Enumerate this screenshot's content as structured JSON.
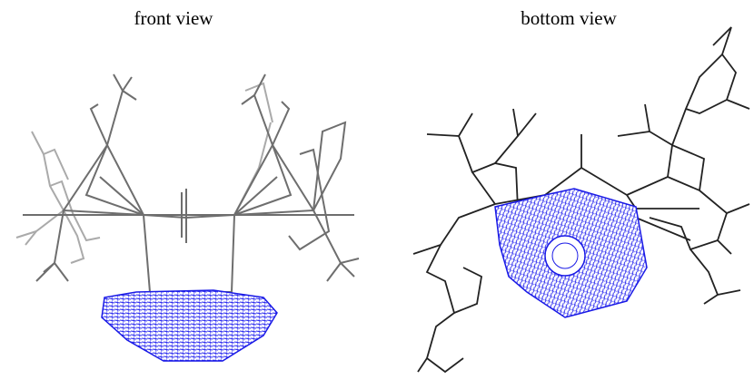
{
  "panels": [
    {
      "label": "front view"
    },
    {
      "label": "bottom view"
    }
  ]
}
